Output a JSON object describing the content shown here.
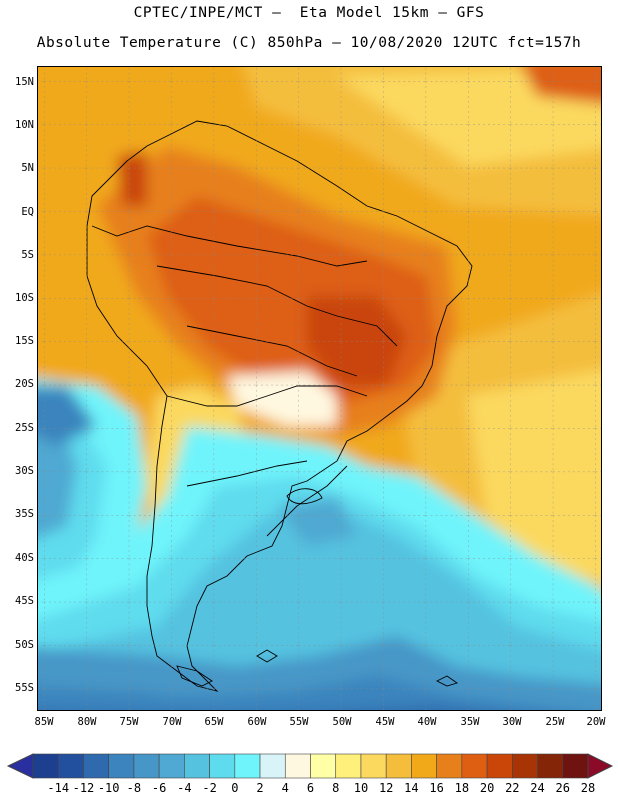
{
  "header": {
    "line1": "CPTEC/INPE/MCT –  Eta Model 15km – GFS",
    "line2": "Absolute Temperature (C) 850hPa – 10/08/2020 12UTC fct=157h"
  },
  "axes": {
    "lat_labels": [
      "15N",
      "10N",
      "5N",
      "EQ",
      "5S",
      "10S",
      "15S",
      "20S",
      "25S",
      "30S",
      "35S",
      "40S",
      "45S",
      "50S",
      "55S"
    ],
    "lon_labels": [
      "85W",
      "80W",
      "75W",
      "70W",
      "65W",
      "60W",
      "55W",
      "50W",
      "45W",
      "40W",
      "35W",
      "30W",
      "25W",
      "20W"
    ]
  },
  "colorbar": {
    "labels": [
      "-14",
      "-12",
      "-10",
      "-8",
      "-6",
      "-4",
      "-2",
      "0",
      "2",
      "4",
      "6",
      "8",
      "10",
      "12",
      "14",
      "16",
      "18",
      "20",
      "22",
      "24",
      "26",
      "28"
    ],
    "colors": [
      "#1d3f8f",
      "#23509e",
      "#2f6aae",
      "#3b84bd",
      "#4697c7",
      "#4fa9d2",
      "#55c2e0",
      "#5edcee",
      "#6ff4fb",
      "#d8f4f8",
      "#fff8e0",
      "#ffffa6",
      "#fff07c",
      "#fbd95f",
      "#f4be3c",
      "#f1a91a",
      "#e7801a",
      "#de5e12",
      "#c94508",
      "#a83305",
      "#852508",
      "#6e1310"
    ],
    "under_color": "#2a2fa0",
    "over_color": "#8b0a28"
  }
}
